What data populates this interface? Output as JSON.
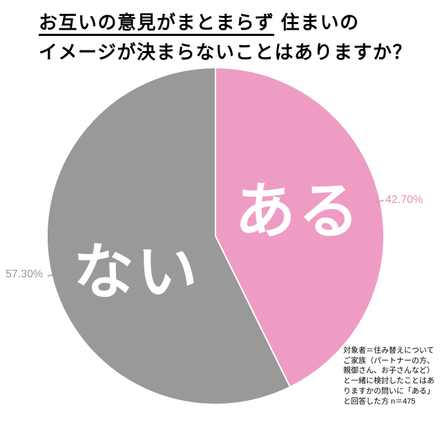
{
  "title": {
    "line1_underlined": "お互いの意見がまとまらず",
    "line1_rest": " 住まいの",
    "line2": "イメージが決まらないことはありますか？"
  },
  "chart_data": {
    "type": "pie",
    "title": "お互いの意見がまとまらず住まいのイメージが決まらないことはありますか？",
    "start_angle_deg": 0,
    "direction": "clockwise",
    "slices": [
      {
        "label": "ある",
        "value": 42.7,
        "display": "42.70%",
        "color": "#ef9cc5",
        "label_color": "#e58db8"
      },
      {
        "label": "ない",
        "value": 57.3,
        "display": "57.30%",
        "color": "#999999",
        "label_color": "#9a9a9a"
      }
    ],
    "sample_note": "n＝475"
  },
  "footnote": {
    "lines": [
      "対象者＝住み替えについて",
      "ご家族（パートナーの方、",
      "親御さん、お子さんなど）",
      "と一緒に検討したことはあ",
      "りますかの問いに「ある」",
      "と回答した方 n＝475"
    ]
  }
}
